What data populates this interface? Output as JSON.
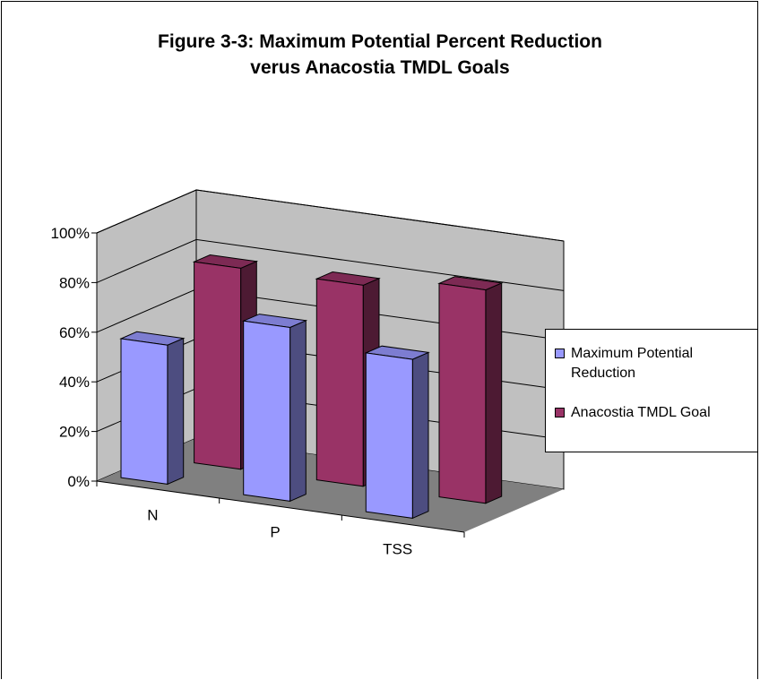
{
  "title_lines": [
    "Figure 3-3: Maximum Potential Percent Reduction",
    "verus Anacostia TMDL Goals"
  ],
  "chart_data": {
    "type": "bar",
    "view": "3d-clustered",
    "title": "Figure 3-3: Maximum Potential Percent Reduction verus Anacostia TMDL Goals",
    "categories": [
      "N",
      "P",
      "TSS"
    ],
    "series": [
      {
        "name": "Maximum Potential Reduction",
        "values": [
          0.56,
          0.7,
          0.64
        ],
        "color": "#9999ff"
      },
      {
        "name": "Anacostia TMDL Goal",
        "values": [
          0.81,
          0.81,
          0.86
        ],
        "color": "#993366"
      }
    ],
    "yticks": [
      "0%",
      "20%",
      "40%",
      "60%",
      "80%",
      "100%"
    ],
    "ylim": [
      0,
      1
    ],
    "grid": true,
    "legend": "right",
    "colors": {
      "wall": "#c0c0c0",
      "floor": "#808080"
    }
  },
  "legend_items": [
    "Maximum Potential",
    "Reduction",
    "Anacostia TMDL Goal"
  ]
}
